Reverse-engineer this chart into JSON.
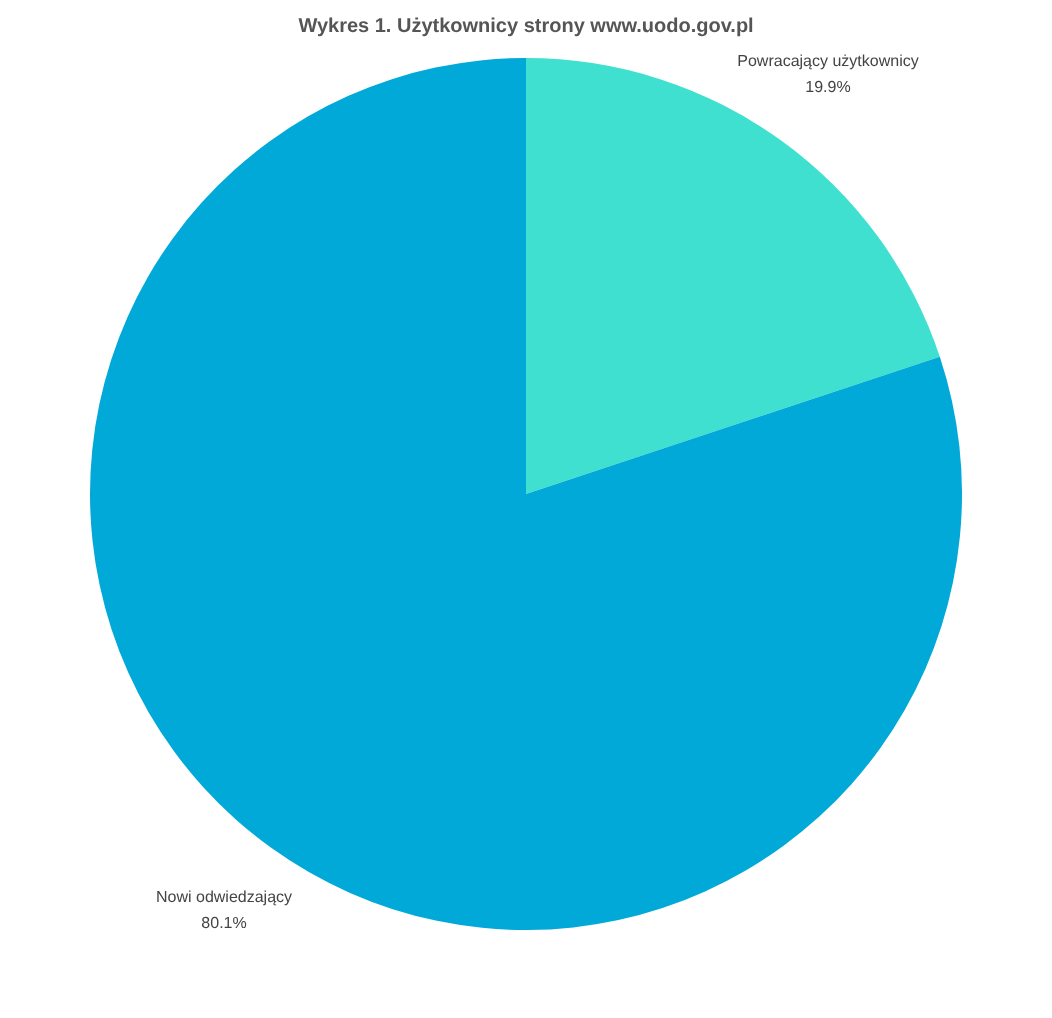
{
  "chart_data": {
    "type": "pie",
    "title": "Wykres 1. Użytkownicy strony www.uodo.gov.pl",
    "categories": [
      "Powracający użytkownicy",
      "Nowi odwiedzający"
    ],
    "values": [
      19.9,
      80.1
    ],
    "colors": [
      "#3fe0d0",
      "#00a9d8"
    ],
    "value_labels": [
      "19.9%",
      "80.1%"
    ],
    "legend": false
  }
}
